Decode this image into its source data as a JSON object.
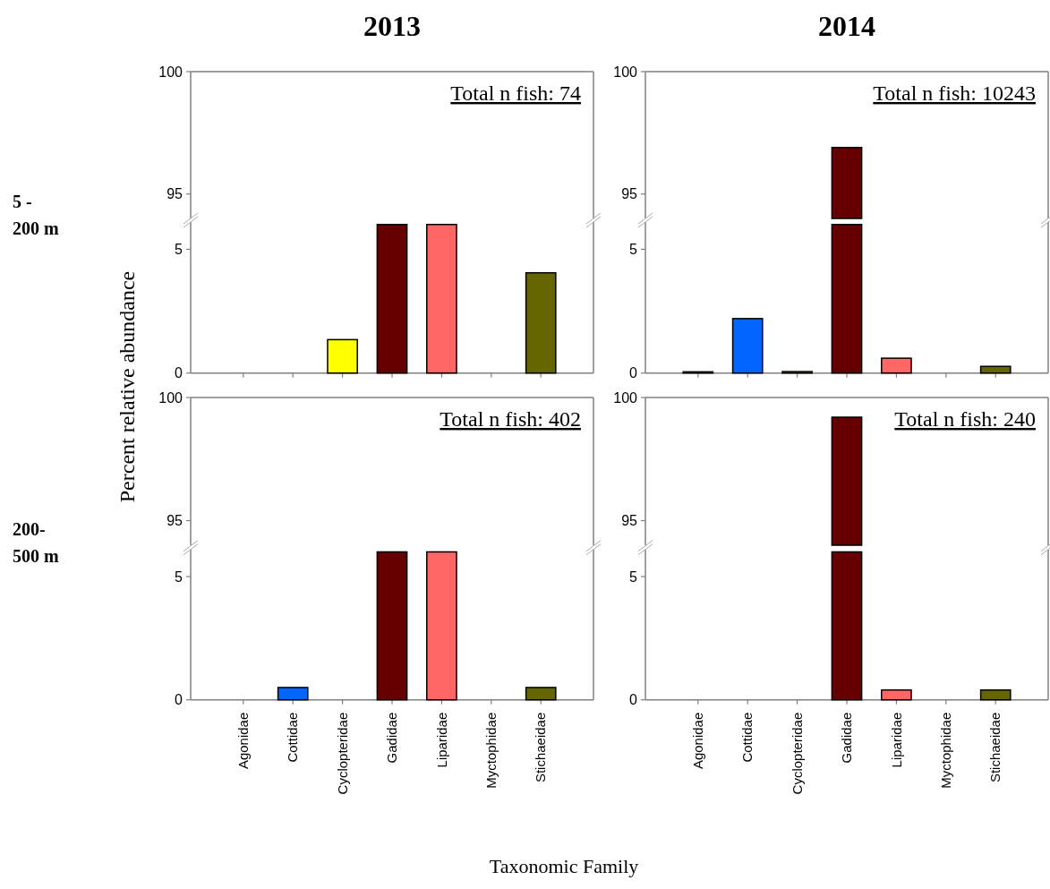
{
  "chart_data": [
    {
      "type": "bar",
      "title": "2013",
      "categories": [
        null,
        null,
        null,
        null,
        null,
        null,
        null
      ],
      "values": [
        null,
        null,
        null,
        null,
        null,
        null,
        null
      ],
      "ylim": [
        94,
        100
      ],
      "yticks": [
        95,
        100
      ],
      "tick_labels": "y",
      "annotations": [
        "Total n fish: 74"
      ]
    },
    {
      "type": "bar",
      "categories": [
        null,
        null,
        null,
        null,
        null,
        null,
        null
      ],
      "values": [
        0,
        0,
        1.35,
        6.0,
        6.0,
        0,
        4.05
      ],
      "colors": [
        "#404040",
        "#0066ff",
        "#ffff00",
        "#660000",
        "#ff6666",
        "#404040",
        "#666600"
      ],
      "ylim": [
        0,
        6.1
      ],
      "yticks": [
        0,
        5
      ],
      "tick_labels": "y",
      "annotations": [
        "5 - 200 m"
      ]
    },
    {
      "type": "bar",
      "title": "2014",
      "categories": [
        null,
        null,
        null,
        null,
        null,
        null,
        null
      ],
      "values": [
        null,
        null,
        null,
        96.9,
        null,
        null,
        null
      ],
      "color": "#660000",
      "ylim": [
        94,
        100
      ],
      "yticks": [
        95,
        100
      ],
      "tick_labels": "y",
      "annotations": [
        "Total n fish: 10243"
      ]
    },
    {
      "type": "bar",
      "categories": [
        null,
        null,
        null,
        null,
        null,
        null,
        null
      ],
      "values": [
        0.05,
        2.2,
        0.06,
        6.0,
        0.6,
        0,
        0.27
      ],
      "colors": [
        "#404040",
        "#0066ff",
        "#ffff00",
        "#660000",
        "#ff6666",
        "#404040",
        "#666600"
      ],
      "ylim": [
        0,
        6.1
      ],
      "yticks": [
        0,
        5
      ],
      "tick_labels": "y"
    },
    {
      "type": "bar",
      "categories": [
        null,
        null,
        null,
        null,
        null,
        null,
        null
      ],
      "values": [
        null,
        null,
        null,
        null,
        null,
        null,
        null
      ],
      "ylim": [
        94,
        100
      ],
      "yticks": [
        95,
        100
      ],
      "tick_labels": "y",
      "ylabel": "Percent relative abundance",
      "annotations": [
        "Total n fish: 402"
      ]
    },
    {
      "type": "bar",
      "categories": [
        "Agonidae",
        "Cottidae",
        "Cyclopteridae",
        "Gadidae",
        "Liparidae",
        "Myctophidae",
        "Stichaeidae"
      ],
      "values": [
        0,
        0.5,
        0,
        6.0,
        6.0,
        0,
        0.5
      ],
      "colors": [
        "#404040",
        "#0066ff",
        "#ffff00",
        "#660000",
        "#ff6666",
        "#404040",
        "#666600"
      ],
      "ylim": [
        0,
        6.1
      ],
      "yticks": [
        0,
        5
      ],
      "xlabel": "Taxonomic Family",
      "annotations": [
        "200- 500 m"
      ]
    },
    {
      "type": "bar",
      "categories": [
        null,
        null,
        null,
        null,
        null,
        null,
        null
      ],
      "values": [
        null,
        null,
        null,
        99.2,
        null,
        null,
        null
      ],
      "color": "#660000",
      "ylim": [
        94,
        100
      ],
      "yticks": [
        95,
        100
      ],
      "tick_labels": "y",
      "annotations": [
        "Total n fish: 240"
      ]
    },
    {
      "type": "bar",
      "categories": [
        "Agonidae",
        "Cottidae",
        "Cyclopteridae",
        "Gadidae",
        "Liparidae",
        "Myctophidae",
        "Stichaeidae"
      ],
      "values": [
        0,
        0,
        0,
        6.0,
        0.4,
        0,
        0.4
      ],
      "colors": [
        "#404040",
        "#0066ff",
        "#ffff00",
        "#660000",
        "#ff6666",
        "#404040",
        "#666600"
      ],
      "ylim": [
        0,
        6.1
      ],
      "yticks": [
        0,
        5
      ]
    }
  ]
}
